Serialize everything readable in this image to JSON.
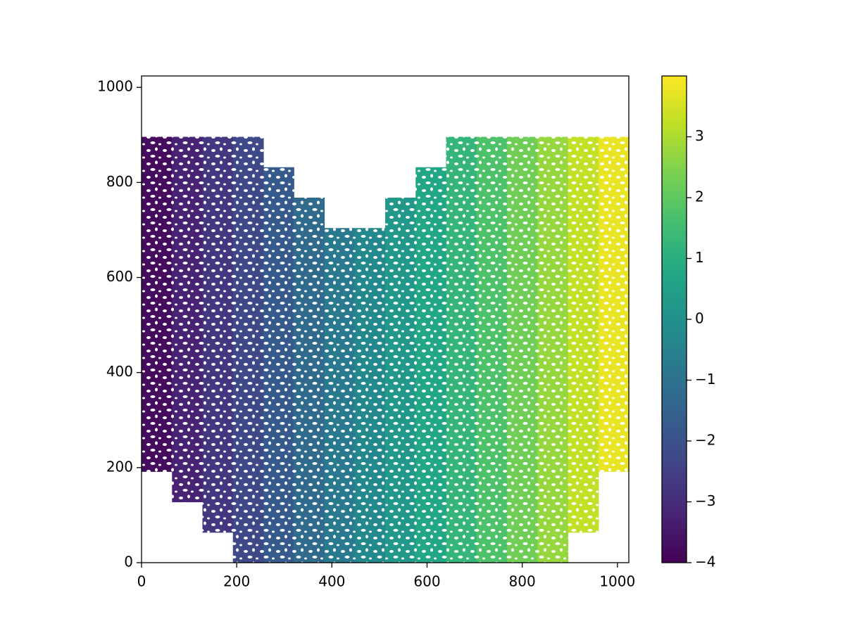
{
  "chart_data": {
    "type": "image",
    "colormap": "viridis",
    "xlim": [
      0,
      1024
    ],
    "ylim": [
      0,
      1024
    ],
    "xticks": [
      0,
      200,
      400,
      600,
      800,
      1000
    ],
    "yticks": [
      0,
      200,
      400,
      600,
      800,
      1000
    ],
    "clim": [
      -4,
      4
    ],
    "cticks": [
      {
        "value": -4,
        "label": "−4"
      },
      {
        "value": -3,
        "label": "−3"
      },
      {
        "value": -2,
        "label": "−2"
      },
      {
        "value": -1,
        "label": "−1"
      },
      0,
      1,
      2,
      3
    ],
    "x": [
      32,
      96,
      160,
      224,
      288,
      352,
      416,
      480,
      544,
      608,
      672,
      736,
      800,
      864,
      928,
      992
    ],
    "y": [
      32,
      96,
      160,
      224,
      288,
      352,
      416,
      480,
      544,
      608,
      672,
      736,
      800,
      864,
      928,
      992
    ],
    "z": [
      [
        null,
        null,
        null,
        -2.25,
        -1.75,
        -1.25,
        -0.75,
        -0.25,
        0.25,
        0.75,
        1.25,
        1.75,
        2.25,
        2.75,
        null,
        null
      ],
      [
        null,
        null,
        -2.75,
        -2.25,
        -1.75,
        -1.25,
        -0.75,
        -0.25,
        0.25,
        0.75,
        1.25,
        1.75,
        2.25,
        2.75,
        3.25,
        null
      ],
      [
        null,
        -3.25,
        -2.75,
        -2.25,
        -1.75,
        -1.25,
        -0.75,
        -0.25,
        0.25,
        0.75,
        1.25,
        1.75,
        2.25,
        2.75,
        3.25,
        null
      ],
      [
        -3.75,
        -3.25,
        -2.75,
        -2.25,
        -1.75,
        -1.25,
        -0.75,
        -0.25,
        0.25,
        0.75,
        1.25,
        1.75,
        2.25,
        2.75,
        3.25,
        3.75
      ],
      [
        -3.75,
        -3.25,
        -2.75,
        -2.25,
        -1.75,
        -1.25,
        -0.75,
        -0.25,
        0.25,
        0.75,
        1.25,
        1.75,
        2.25,
        2.75,
        3.25,
        3.75
      ],
      [
        -3.75,
        -3.25,
        -2.75,
        -2.25,
        -1.75,
        -1.25,
        -0.75,
        -0.25,
        0.25,
        0.75,
        1.25,
        1.75,
        2.25,
        2.75,
        3.25,
        3.75
      ],
      [
        -3.75,
        -3.25,
        -2.75,
        -2.25,
        -1.75,
        -1.25,
        -0.75,
        -0.25,
        0.25,
        0.75,
        1.25,
        1.75,
        2.25,
        2.75,
        3.25,
        3.75
      ],
      [
        -3.75,
        -3.25,
        -2.75,
        -2.25,
        -1.75,
        -1.25,
        -0.75,
        -0.25,
        0.25,
        0.75,
        1.25,
        1.75,
        2.25,
        2.75,
        3.25,
        3.75
      ],
      [
        -3.75,
        -3.25,
        -2.75,
        -2.25,
        -1.75,
        -1.25,
        -0.75,
        -0.25,
        0.25,
        0.75,
        1.25,
        1.75,
        2.25,
        2.75,
        3.25,
        3.75
      ],
      [
        -3.75,
        -3.25,
        -2.75,
        -2.25,
        -1.75,
        -1.25,
        -0.75,
        -0.25,
        0.25,
        0.75,
        1.25,
        1.75,
        2.25,
        2.75,
        3.25,
        3.75
      ],
      [
        -3.75,
        -3.25,
        -2.75,
        -2.25,
        -1.75,
        -1.25,
        -0.75,
        -0.25,
        0.25,
        0.75,
        1.25,
        1.75,
        2.25,
        2.75,
        3.25,
        3.75
      ],
      [
        -3.75,
        -3.25,
        -2.75,
        -2.25,
        -1.75,
        -1.25,
        null,
        null,
        0.25,
        0.75,
        1.25,
        1.75,
        2.25,
        2.75,
        3.25,
        3.75
      ],
      [
        -3.75,
        -3.25,
        -2.75,
        -2.25,
        -1.75,
        null,
        null,
        null,
        null,
        0.75,
        1.25,
        1.75,
        2.25,
        2.75,
        3.25,
        3.75
      ],
      [
        -3.75,
        -3.25,
        -2.75,
        -2.25,
        null,
        null,
        null,
        null,
        null,
        null,
        1.25,
        1.75,
        2.25,
        2.75,
        3.25,
        3.75
      ],
      [
        null,
        null,
        null,
        null,
        null,
        null,
        null,
        null,
        null,
        null,
        null,
        null,
        null,
        null,
        null,
        null
      ],
      [
        null,
        null,
        null,
        null,
        null,
        null,
        null,
        null,
        null,
        null,
        null,
        null,
        null,
        null,
        null,
        null
      ]
    ]
  }
}
